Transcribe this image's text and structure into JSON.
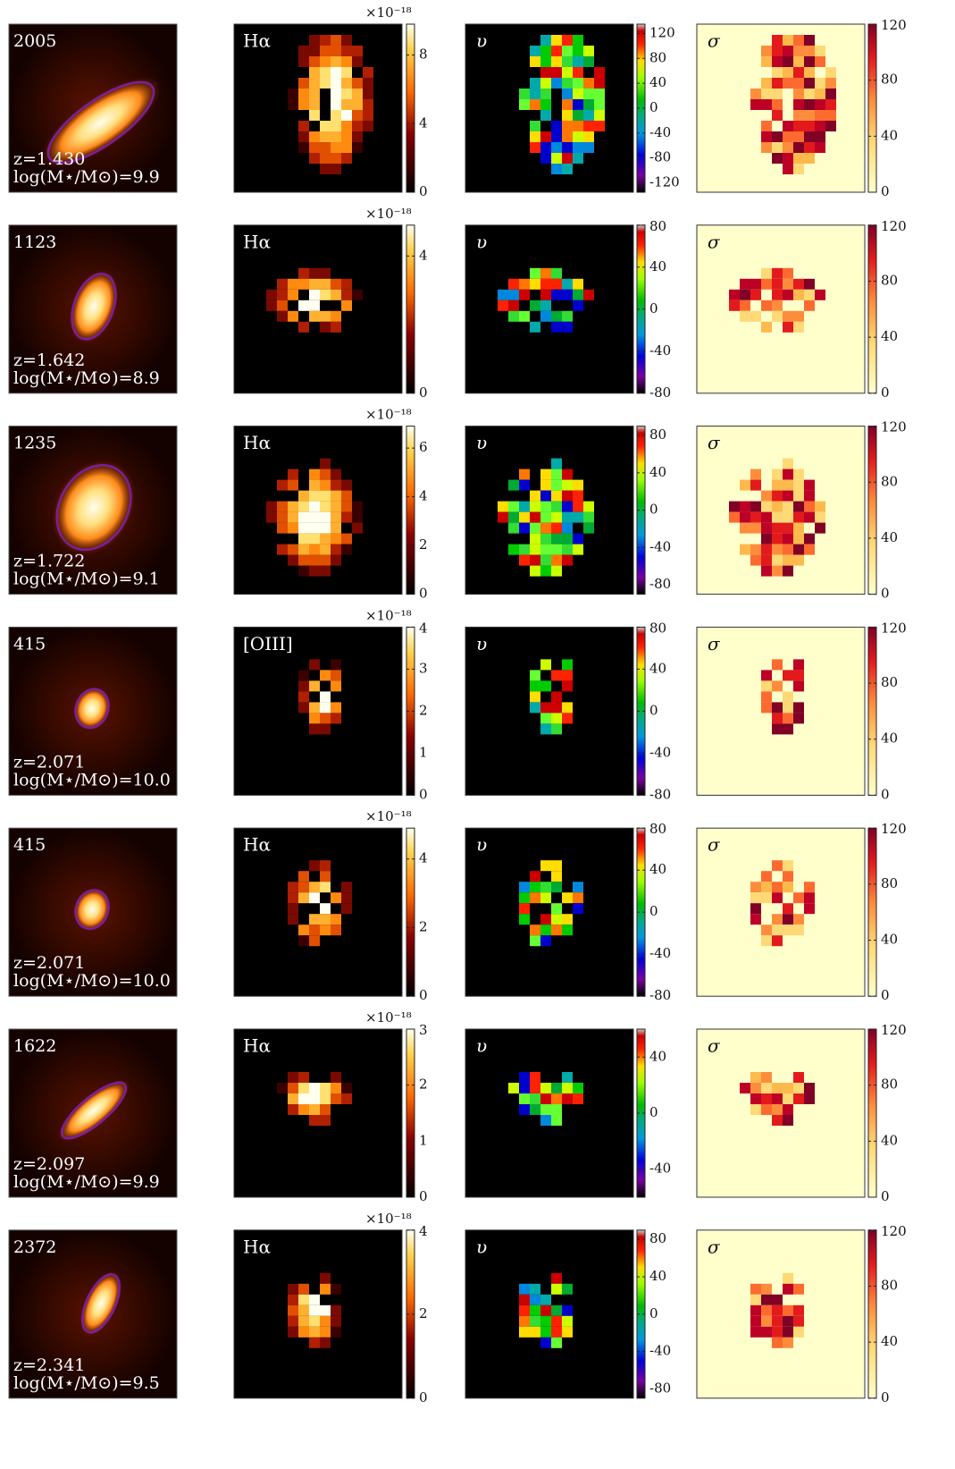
{
  "rows": [
    {
      "id": "2005",
      "redshift": "z=1.430",
      "mass": "log(M⋆/M⊙)=9.9",
      "line": "Hα",
      "scale": "×10⁻¹⁸",
      "flux": {
        "lim": [
          0,
          9.8
        ],
        "ticks": [
          0,
          4,
          8
        ]
      },
      "velocity": {
        "label": "υ",
        "lim": [
          -135,
          135
        ],
        "ticks": [
          120,
          80,
          40,
          0,
          -40,
          -80,
          -120
        ]
      },
      "sigma": {
        "label": "σ",
        "lim": [
          0,
          120
        ],
        "ticks": [
          120,
          80,
          40,
          0
        ]
      }
    },
    {
      "id": "1123",
      "redshift": "z=1.642",
      "mass": "log(M⋆/M⊙)=8.9",
      "line": "Hα",
      "scale": "×10⁻¹⁸",
      "flux": {
        "lim": [
          0,
          4.9
        ],
        "ticks": [
          0,
          4
        ]
      },
      "velocity": {
        "label": "υ",
        "lim": [
          -80,
          80
        ],
        "ticks": [
          80,
          40,
          0,
          -40,
          -80
        ]
      },
      "sigma": {
        "label": "σ",
        "lim": [
          0,
          120
        ],
        "ticks": [
          120,
          80,
          40,
          0
        ]
      }
    },
    {
      "id": "1235",
      "redshift": "z=1.722",
      "mass": "log(M⋆/M⊙)=9.1",
      "line": "Hα",
      "scale": "×10⁻¹⁸",
      "flux": {
        "lim": [
          0,
          6.9
        ],
        "ticks": [
          0,
          2,
          4,
          6
        ]
      },
      "velocity": {
        "label": "υ",
        "lim": [
          -90,
          90
        ],
        "ticks": [
          80,
          40,
          0,
          -40,
          -80
        ]
      },
      "sigma": {
        "label": "σ",
        "lim": [
          0,
          120
        ],
        "ticks": [
          120,
          80,
          40,
          0
        ]
      }
    },
    {
      "id": "415",
      "redshift": "z=2.071",
      "mass": "log(M⋆/M⊙)=10.0",
      "line": "[OIII]",
      "scale": "×10⁻¹⁸",
      "flux": {
        "lim": [
          0,
          4
        ],
        "ticks": [
          0,
          1,
          2,
          3,
          4
        ]
      },
      "velocity": {
        "label": "υ",
        "lim": [
          -80,
          80
        ],
        "ticks": [
          80,
          40,
          0,
          -40,
          -80
        ]
      },
      "sigma": {
        "label": "σ",
        "lim": [
          0,
          120
        ],
        "ticks": [
          120,
          80,
          40,
          0
        ]
      }
    },
    {
      "id": "415",
      "redshift": "z=2.071",
      "mass": "log(M⋆/M⊙)=10.0",
      "line": "Hα",
      "scale": "×10⁻¹⁸",
      "flux": {
        "lim": [
          0,
          4.9
        ],
        "ticks": [
          0,
          2,
          4
        ]
      },
      "velocity": {
        "label": "υ",
        "lim": [
          -80,
          80
        ],
        "ticks": [
          80,
          40,
          0,
          -40,
          -80
        ]
      },
      "sigma": {
        "label": "σ",
        "lim": [
          0,
          120
        ],
        "ticks": [
          120,
          80,
          40,
          0
        ]
      }
    },
    {
      "id": "1622",
      "redshift": "z=2.097",
      "mass": "log(M⋆/M⊙)=9.9",
      "line": "Hα",
      "scale": "×10⁻¹⁸",
      "flux": {
        "lim": [
          0,
          3
        ],
        "ticks": [
          0,
          1,
          2,
          3
        ]
      },
      "velocity": {
        "label": "υ",
        "lim": [
          -60,
          60
        ],
        "ticks": [
          40,
          0,
          -40
        ]
      },
      "sigma": {
        "label": "σ",
        "lim": [
          0,
          120
        ],
        "ticks": [
          120,
          80,
          40,
          0
        ]
      }
    },
    {
      "id": "2372",
      "redshift": "z=2.341",
      "mass": "log(M⋆/M⊙)=9.5",
      "line": "Hα",
      "scale": "×10⁻¹⁸",
      "flux": {
        "lim": [
          0,
          4
        ],
        "ticks": [
          0,
          2,
          4
        ]
      },
      "velocity": {
        "label": "υ",
        "lim": [
          -90,
          90
        ],
        "ticks": [
          80,
          40,
          0,
          -40,
          -80
        ]
      },
      "sigma": {
        "label": "σ",
        "lim": [
          0,
          120
        ],
        "ticks": [
          120,
          80,
          40,
          0
        ]
      }
    }
  ]
}
